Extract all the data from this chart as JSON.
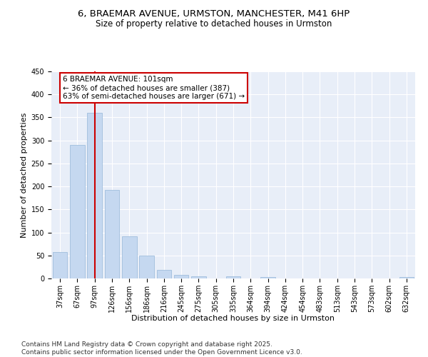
{
  "title": "6, BRAEMAR AVENUE, URMSTON, MANCHESTER, M41 6HP",
  "subtitle": "Size of property relative to detached houses in Urmston",
  "xlabel": "Distribution of detached houses by size in Urmston",
  "ylabel": "Number of detached properties",
  "categories": [
    "37sqm",
    "67sqm",
    "97sqm",
    "126sqm",
    "156sqm",
    "186sqm",
    "216sqm",
    "245sqm",
    "275sqm",
    "305sqm",
    "335sqm",
    "364sqm",
    "394sqm",
    "424sqm",
    "454sqm",
    "483sqm",
    "513sqm",
    "543sqm",
    "573sqm",
    "602sqm",
    "632sqm"
  ],
  "values": [
    57,
    290,
    360,
    193,
    91,
    50,
    18,
    8,
    5,
    0,
    5,
    0,
    3,
    0,
    0,
    0,
    0,
    0,
    0,
    0,
    3
  ],
  "bar_color": "#c5d8f0",
  "bar_edge_color": "#a0bedd",
  "vline_x_index": 2,
  "vline_color": "#cc0000",
  "annotation_line1": "6 BRAEMAR AVENUE: 101sqm",
  "annotation_line2": "← 36% of detached houses are smaller (387)",
  "annotation_line3": "63% of semi-detached houses are larger (671) →",
  "annotation_box_color": "#cc0000",
  "ylim": [
    0,
    450
  ],
  "yticks": [
    0,
    50,
    100,
    150,
    200,
    250,
    300,
    350,
    400,
    450
  ],
  "bg_color": "#e8eef8",
  "footnote": "Contains HM Land Registry data © Crown copyright and database right 2025.\nContains public sector information licensed under the Open Government Licence v3.0.",
  "title_fontsize": 9.5,
  "subtitle_fontsize": 8.5,
  "axis_label_fontsize": 8,
  "tick_fontsize": 7,
  "footnote_fontsize": 6.5,
  "annotation_fontsize": 7.5
}
